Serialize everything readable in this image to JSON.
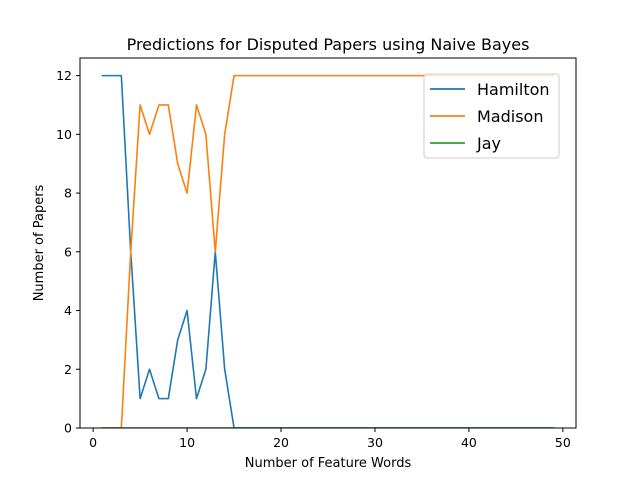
{
  "chart_data": {
    "type": "line",
    "title": "Predictions for Disputed Papers using Naive Bayes",
    "xlabel": "Number of Feature Words",
    "ylabel": "Number of Papers",
    "xlim": [
      -1.4,
      51.4
    ],
    "ylim": [
      0,
      12.6
    ],
    "xticks": [
      0,
      10,
      20,
      30,
      40,
      50
    ],
    "yticks": [
      0,
      2,
      4,
      6,
      8,
      10,
      12
    ],
    "grid": false,
    "legend_position": "upper right",
    "x": [
      1,
      2,
      3,
      4,
      5,
      6,
      7,
      8,
      9,
      10,
      11,
      12,
      13,
      14,
      15,
      16,
      17,
      18,
      19,
      20,
      21,
      22,
      23,
      24,
      25,
      26,
      27,
      28,
      29,
      30,
      31,
      32,
      33,
      34,
      35,
      36,
      37,
      38,
      39,
      40,
      41,
      42,
      43,
      44,
      45,
      46,
      47,
      48,
      49
    ],
    "series": [
      {
        "name": "Hamilton",
        "color": "#1f77b4",
        "values": [
          12,
          12,
          12,
          6,
          1,
          2,
          1,
          1,
          3,
          4,
          1,
          2,
          6,
          2,
          0,
          0,
          0,
          0,
          0,
          0,
          0,
          0,
          0,
          0,
          0,
          0,
          0,
          0,
          0,
          0,
          0,
          0,
          0,
          0,
          0,
          0,
          0,
          0,
          0,
          0,
          0,
          0,
          0,
          0,
          0,
          0,
          0,
          0,
          0
        ]
      },
      {
        "name": "Madison",
        "color": "#ff7f0e",
        "values": [
          0,
          0,
          0,
          6,
          11,
          10,
          11,
          11,
          9,
          8,
          11,
          10,
          6,
          10,
          12,
          12,
          12,
          12,
          12,
          12,
          12,
          12,
          12,
          12,
          12,
          12,
          12,
          12,
          12,
          12,
          12,
          12,
          12,
          12,
          12,
          12,
          12,
          12,
          12,
          12,
          12,
          12,
          12,
          12,
          12,
          12,
          12,
          12,
          12
        ]
      },
      {
        "name": "Jay",
        "color": "#2ca02c",
        "values": [
          0,
          0,
          0,
          0,
          0,
          0,
          0,
          0,
          0,
          0,
          0,
          0,
          0,
          0,
          0,
          0,
          0,
          0,
          0,
          0,
          0,
          0,
          0,
          0,
          0,
          0,
          0,
          0,
          0,
          0,
          0,
          0,
          0,
          0,
          0,
          0,
          0,
          0,
          0,
          0,
          0,
          0,
          0,
          0,
          0,
          0,
          0,
          0,
          0
        ]
      }
    ]
  }
}
